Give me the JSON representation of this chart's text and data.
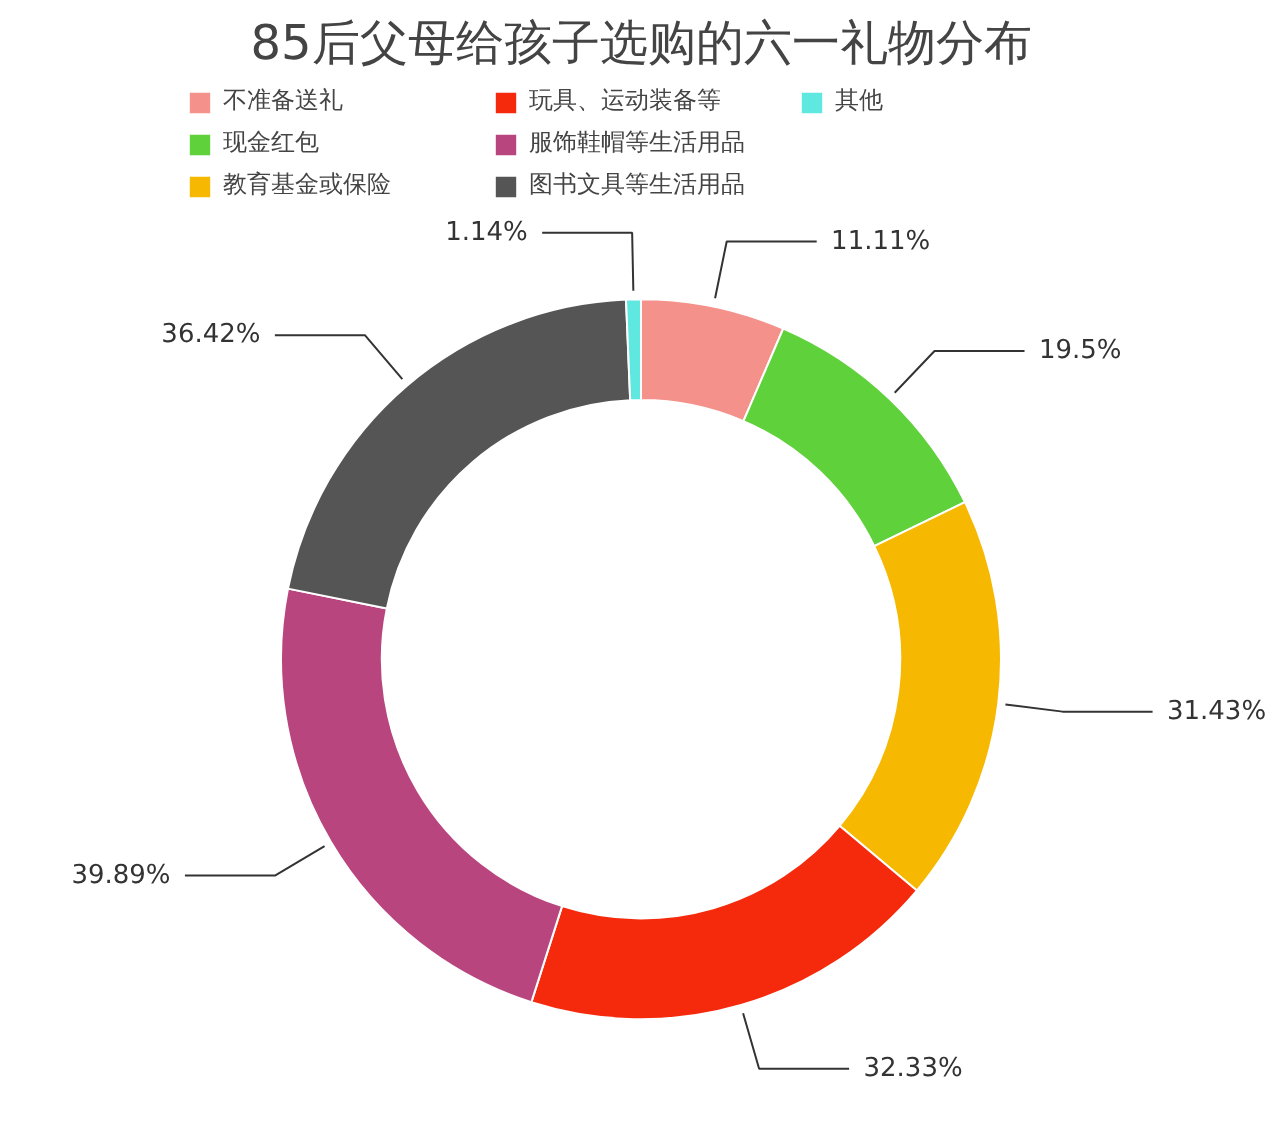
{
  "chart_data": {
    "type": "donut",
    "title": "85后父母给孩子选购的六一礼物分布",
    "categories": [
      "不准备送礼",
      "现金红包",
      "教育基金或保险",
      "玩具、运动装备等",
      "服饰鞋帽等生活用品",
      "图书文具等生活用品",
      "其他"
    ],
    "values": [
      11.11,
      19.5,
      31.43,
      32.33,
      39.89,
      36.42,
      1.14
    ],
    "value_labels": [
      "11.11%",
      "19.5%",
      "31.43%",
      "32.33%",
      "39.89%",
      "36.42%",
      "1.14%"
    ],
    "colors": [
      "#f4918a",
      "#5fd13a",
      "#f6b800",
      "#f52a0c",
      "#b8457e",
      "#555555",
      "#5ee8e0"
    ],
    "legend": "top"
  }
}
